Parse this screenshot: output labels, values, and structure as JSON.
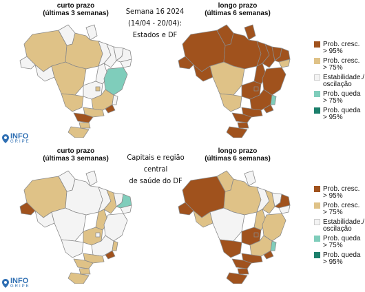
{
  "top": {
    "center_title": "Semana 16 2024\n(14/04 - 20/04):\nEstados e DF",
    "short_title": "curto prazo\n(últimas 3 semanas)",
    "long_title": "longo prazo\n(últimas 6 semanas)"
  },
  "bottom": {
    "center_title": "Capitais e região central\nde saúde do DF",
    "short_title": "curto prazo\n(últimas 3 semanas)",
    "long_title": "longo prazo\n(últimas 6 semanas)"
  },
  "legend": [
    {
      "label": "Prob. cresc.\n> 95%",
      "color": "#a0521d"
    },
    {
      "label": "Prob. cresc.\n> 75%",
      "color": "#dfc287"
    },
    {
      "label": "Estabilidade./\noscilação",
      "color": "#f4f4f4"
    },
    {
      "label": "Prob. queda\n> 75%",
      "color": "#7fcdbb"
    },
    {
      "label": "Prob. queda\n> 95%",
      "color": "#1b7f6b"
    }
  ],
  "logo": {
    "name": "INFO",
    "sub": "GRIPE"
  },
  "colors": {
    "dark_brown": "#a0521d",
    "tan": "#dfc287",
    "light": "#f4f4f4",
    "teal": "#7fcdbb",
    "dark_teal": "#1b7f6b",
    "border": "#8a8a8a"
  }
}
